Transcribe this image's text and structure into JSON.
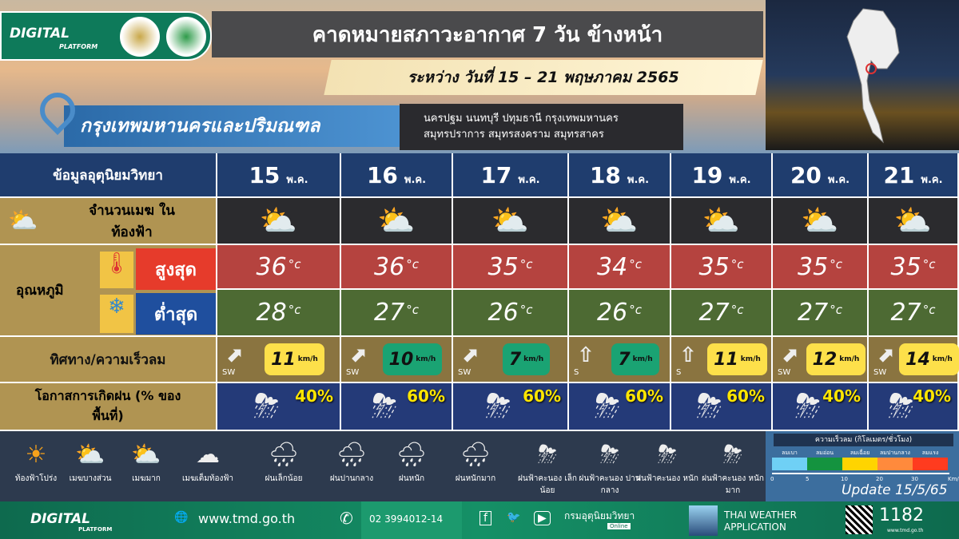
{
  "header": {
    "brand": "DIGITAL",
    "brand_sub": "PLATFORM",
    "title": "คาดหมายสภาวะอากาศ 7 วัน ข้างหน้า",
    "date_range": "ระหว่าง วันที่  15 – 21 พฤษภาคม  2565",
    "region": "กรุงเทพมหานครและปริมณฑล",
    "provinces_line1": "นครปฐม นนทบุรี ปทุมธานี กรุงเทพมหานคร",
    "provinces_line2": "สมุทรปราการ สมุทรสงคราม สมุทรสาคร"
  },
  "table": {
    "header_label": "ข้อมูลอุตุนิยมวิทยา",
    "month_abbr": "พ.ค.",
    "cloud_label": "จำนวนเมฆ ในท้องฟ้า",
    "temp_label": "อุณหภูมิ",
    "max_label": "สูงสุด",
    "min_label": "ต่ำสุด",
    "wind_label": "ทิศทาง/ความเร็วลม",
    "rain_label": "โอกาสการเกิดฝน (% ของพื้นที่)",
    "unit_c": "c",
    "unit_wind": "km/h",
    "days": [
      {
        "day": "15",
        "max": "36",
        "min": "28",
        "wind_dir": "SW",
        "wind": "11",
        "wind_color": "#fde04a",
        "rain": "40%"
      },
      {
        "day": "16",
        "max": "36",
        "min": "27",
        "wind_dir": "SW",
        "wind": "10",
        "wind_color": "#1aa373",
        "rain": "60%"
      },
      {
        "day": "17",
        "max": "35",
        "min": "26",
        "wind_dir": "SW",
        "wind": "7",
        "wind_color": "#1aa373",
        "rain": "60%"
      },
      {
        "day": "18",
        "max": "34",
        "min": "26",
        "wind_dir": "S",
        "wind": "7",
        "wind_color": "#1aa373",
        "rain": "60%"
      },
      {
        "day": "19",
        "max": "35",
        "min": "27",
        "wind_dir": "S",
        "wind": "11",
        "wind_color": "#fde04a",
        "rain": "60%"
      },
      {
        "day": "20",
        "max": "35",
        "min": "27",
        "wind_dir": "SW",
        "wind": "12",
        "wind_color": "#fde04a",
        "rain": "40%"
      },
      {
        "day": "21",
        "max": "35",
        "min": "27",
        "wind_dir": "SW",
        "wind": "14",
        "wind_color": "#fde04a",
        "rain": "40%"
      }
    ]
  },
  "legend": [
    {
      "icon": "sun-icon",
      "glyph": "☀",
      "label": "ท้องฟ้าโปร่ง"
    },
    {
      "icon": "partly-cloudy-icon",
      "glyph": "⛅",
      "label": "เมฆบางส่วน"
    },
    {
      "icon": "mostly-cloudy-icon",
      "glyph": "⛅",
      "label": "เมฆมาก"
    },
    {
      "icon": "overcast-icon",
      "glyph": "☁",
      "label": "เมฆเต็มท้องฟ้า"
    },
    {
      "icon": "light-rain-icon",
      "glyph": "🌧",
      "label": "ฝนเล็กน้อย"
    },
    {
      "icon": "moderate-rain-icon",
      "glyph": "🌧",
      "label": "ฝนปานกลาง"
    },
    {
      "icon": "heavy-rain-icon",
      "glyph": "🌧",
      "label": "ฝนหนัก"
    },
    {
      "icon": "very-heavy-rain-icon",
      "glyph": "🌧",
      "label": "ฝนหนักมาก"
    },
    {
      "icon": "light-thunderstorm-icon",
      "glyph": "⛈",
      "label": "ฝนฟ้าคะนอง เล็กน้อย"
    },
    {
      "icon": "moderate-thunderstorm-icon",
      "glyph": "⛈",
      "label": "ฝนฟ้าคะนอง ปานกลาง"
    },
    {
      "icon": "heavy-thunderstorm-icon",
      "glyph": "⛈",
      "label": "ฝนฟ้าคะนอง หนัก"
    },
    {
      "icon": "very-heavy-thunderstorm-icon",
      "glyph": "⛈",
      "label": "ฝนฟ้าคะนอง หนักมาก"
    }
  ],
  "wind_legend": {
    "title": "ความเร็วลม (กิโลเมตร/ชั่วโมง)",
    "unit": "Km/",
    "levels": [
      {
        "label": "ลมเบา",
        "color": "#6fd0f5"
      },
      {
        "label": "ลมอ่อน",
        "color": "#14933f"
      },
      {
        "label": "ลมเฉื่อย",
        "color": "#ffd400"
      },
      {
        "label": "ลมปานกลาง",
        "color": "#ff8a3c"
      },
      {
        "label": "ลมแรง",
        "color": "#ff3b1f"
      }
    ],
    "ticks": [
      "0",
      "5",
      "10",
      "20",
      "30"
    ],
    "update": "Update  15/5/65"
  },
  "footer": {
    "brand": "DIGITAL",
    "brand_sub": "PLATFORM",
    "website": "www.tmd.go.th",
    "phone": "02 3994012-14",
    "dept": "กรมอุตุนิยมวิทยา",
    "dept_sub": "Online",
    "app_line1": "THAI WEATHER",
    "app_line2": "APPLICATION",
    "hotline": "1182",
    "hotline_sub": "www.tmd.go.th"
  }
}
